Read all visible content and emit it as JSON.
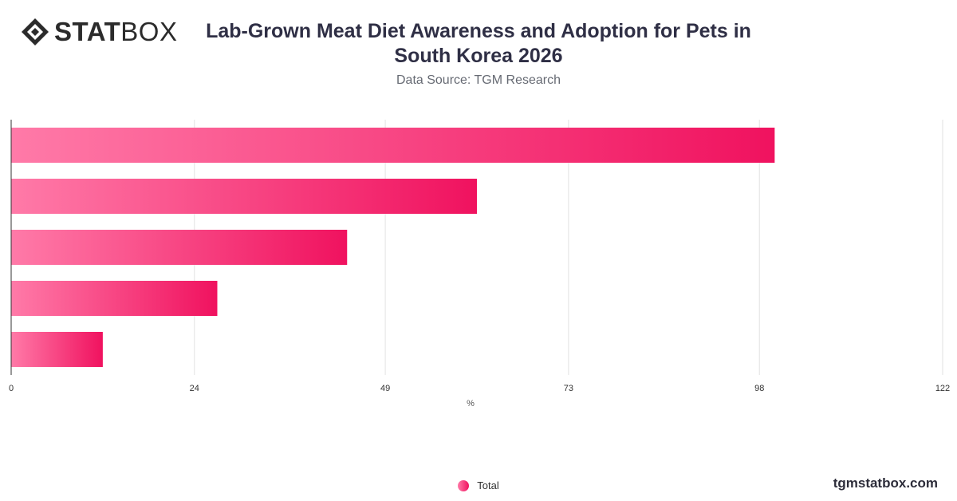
{
  "brand": {
    "logo_bold": "STAT",
    "logo_light": "BOX",
    "site": "tgmstatbox.com"
  },
  "colors": {
    "bar_start": "#ff7aa8",
    "bar_end": "#f0125f",
    "grid": "#e2e2e2",
    "axis": "#333333"
  },
  "chart_data": {
    "type": "bar",
    "orientation": "horizontal",
    "title": "Lab-Grown Meat Diet Awareness and Adoption for Pets in South Korea 2026",
    "subtitle": "Data Source: TGM Research",
    "xlabel": "%",
    "xlim": [
      0,
      122
    ],
    "xticks": [
      0,
      24,
      49,
      73,
      98,
      122
    ],
    "grid": true,
    "legend_position": "bottom-center",
    "categories": [
      "",
      "",
      "",
      "",
      ""
    ],
    "series": [
      {
        "name": "Total",
        "values": [
          100,
          61,
          44,
          27,
          12
        ]
      }
    ]
  }
}
